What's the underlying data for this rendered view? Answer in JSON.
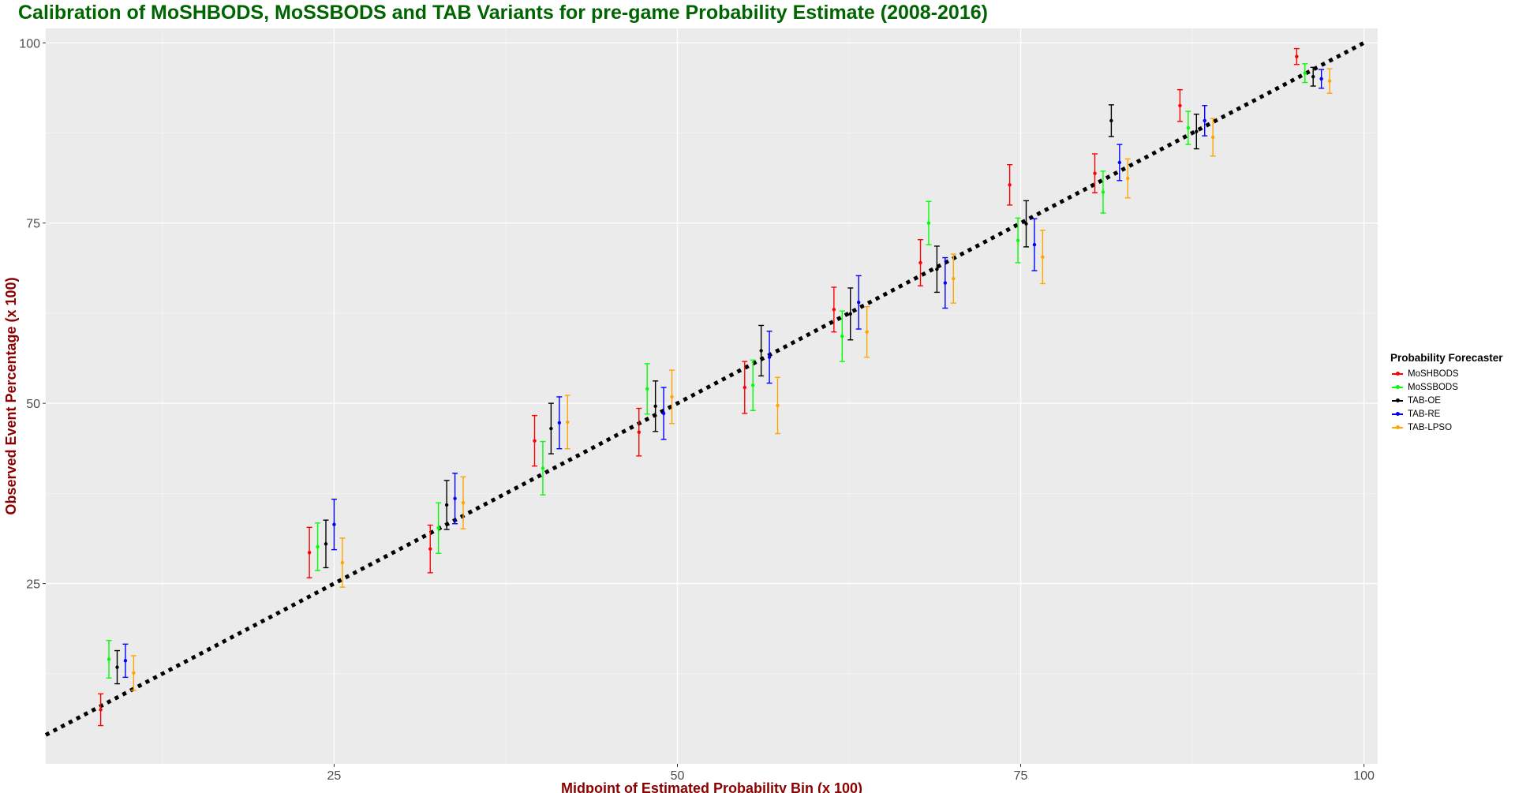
{
  "chart_data": {
    "type": "scatter",
    "title": "Calibration of MoSHBODS, MoSSBODS and TAB Variants for pre-game Probability Estimate (2008-2016)",
    "xlabel": "Midpoint of Estimated Probability Bin (x 100)",
    "ylabel": "Observed Event Percentage (x 100)",
    "xlim": [
      4,
      101
    ],
    "ylim": [
      0,
      102
    ],
    "x_ticks": [
      25,
      50,
      75,
      100
    ],
    "y_ticks": [
      25,
      50,
      75,
      100
    ],
    "grid": true,
    "legend_title": "Probability Forecaster",
    "legend_position": "right",
    "reference_line": {
      "style": "dotted",
      "color": "#000000",
      "from": [
        4,
        4
      ],
      "to": [
        100,
        100
      ]
    },
    "series": [
      {
        "name": "MoSHBODS",
        "color": "#ff0000",
        "points": [
          {
            "x": 8.0,
            "y": 7.5,
            "lo": 5.3,
            "hi": 9.7
          },
          {
            "x": 23.2,
            "y": 29.3,
            "lo": 25.8,
            "hi": 32.8
          },
          {
            "x": 32.0,
            "y": 29.8,
            "lo": 26.5,
            "hi": 33.1
          },
          {
            "x": 39.6,
            "y": 44.8,
            "lo": 41.3,
            "hi": 48.3
          },
          {
            "x": 47.2,
            "y": 46.0,
            "lo": 42.7,
            "hi": 49.3
          },
          {
            "x": 54.9,
            "y": 52.2,
            "lo": 48.6,
            "hi": 55.8
          },
          {
            "x": 61.4,
            "y": 63.0,
            "lo": 59.9,
            "hi": 66.1
          },
          {
            "x": 67.7,
            "y": 69.5,
            "lo": 66.3,
            "hi": 72.7
          },
          {
            "x": 74.2,
            "y": 80.3,
            "lo": 77.5,
            "hi": 83.1
          },
          {
            "x": 80.4,
            "y": 81.9,
            "lo": 79.2,
            "hi": 84.6
          },
          {
            "x": 86.6,
            "y": 91.3,
            "lo": 89.1,
            "hi": 93.5
          },
          {
            "x": 95.1,
            "y": 98.1,
            "lo": 97.0,
            "hi": 99.2
          }
        ]
      },
      {
        "name": "MoSSBODS",
        "color": "#00ff00",
        "points": [
          {
            "x": 8.6,
            "y": 14.5,
            "lo": 11.9,
            "hi": 17.1
          },
          {
            "x": 23.8,
            "y": 30.1,
            "lo": 26.8,
            "hi": 33.4
          },
          {
            "x": 32.6,
            "y": 32.7,
            "lo": 29.2,
            "hi": 36.2
          },
          {
            "x": 40.2,
            "y": 41.0,
            "lo": 37.3,
            "hi": 44.7
          },
          {
            "x": 47.8,
            "y": 52.0,
            "lo": 48.5,
            "hi": 55.5
          },
          {
            "x": 55.5,
            "y": 52.5,
            "lo": 49.0,
            "hi": 56.0
          },
          {
            "x": 62.0,
            "y": 59.3,
            "lo": 55.8,
            "hi": 62.8
          },
          {
            "x": 68.3,
            "y": 75.0,
            "lo": 72.0,
            "hi": 78.0
          },
          {
            "x": 74.8,
            "y": 72.6,
            "lo": 69.5,
            "hi": 75.7
          },
          {
            "x": 81.0,
            "y": 79.3,
            "lo": 76.4,
            "hi": 82.2
          },
          {
            "x": 87.2,
            "y": 88.2,
            "lo": 85.9,
            "hi": 90.5
          },
          {
            "x": 95.7,
            "y": 95.8,
            "lo": 94.5,
            "hi": 97.1
          }
        ]
      },
      {
        "name": "TAB-OE",
        "color": "#000000",
        "points": [
          {
            "x": 9.2,
            "y": 13.4,
            "lo": 11.1,
            "hi": 15.7
          },
          {
            "x": 24.4,
            "y": 30.5,
            "lo": 27.2,
            "hi": 33.8
          },
          {
            "x": 33.2,
            "y": 35.9,
            "lo": 32.5,
            "hi": 39.3
          },
          {
            "x": 40.8,
            "y": 46.5,
            "lo": 43.0,
            "hi": 50.0
          },
          {
            "x": 48.4,
            "y": 49.6,
            "lo": 46.1,
            "hi": 53.1
          },
          {
            "x": 56.1,
            "y": 57.3,
            "lo": 53.8,
            "hi": 60.8
          },
          {
            "x": 62.6,
            "y": 62.4,
            "lo": 58.8,
            "hi": 66.0
          },
          {
            "x": 68.9,
            "y": 68.6,
            "lo": 65.4,
            "hi": 71.8
          },
          {
            "x": 75.4,
            "y": 74.9,
            "lo": 71.7,
            "hi": 78.1
          },
          {
            "x": 81.6,
            "y": 89.2,
            "lo": 87.0,
            "hi": 91.4
          },
          {
            "x": 87.8,
            "y": 87.7,
            "lo": 85.3,
            "hi": 90.1
          },
          {
            "x": 96.3,
            "y": 95.3,
            "lo": 94.0,
            "hi": 96.6
          }
        ]
      },
      {
        "name": "TAB-RE",
        "color": "#0000ff",
        "points": [
          {
            "x": 9.8,
            "y": 14.3,
            "lo": 12.0,
            "hi": 16.6
          },
          {
            "x": 25.0,
            "y": 33.2,
            "lo": 29.7,
            "hi": 36.7
          },
          {
            "x": 33.8,
            "y": 36.8,
            "lo": 33.3,
            "hi": 40.3
          },
          {
            "x": 41.4,
            "y": 47.3,
            "lo": 43.7,
            "hi": 50.9
          },
          {
            "x": 49.0,
            "y": 48.6,
            "lo": 45.0,
            "hi": 52.2
          },
          {
            "x": 56.7,
            "y": 56.4,
            "lo": 52.8,
            "hi": 60.0
          },
          {
            "x": 63.2,
            "y": 64.0,
            "lo": 60.3,
            "hi": 67.7
          },
          {
            "x": 69.5,
            "y": 66.7,
            "lo": 63.2,
            "hi": 70.2
          },
          {
            "x": 76.0,
            "y": 72.0,
            "lo": 68.4,
            "hi": 75.6
          },
          {
            "x": 82.2,
            "y": 83.4,
            "lo": 80.9,
            "hi": 85.9
          },
          {
            "x": 88.4,
            "y": 89.2,
            "lo": 87.1,
            "hi": 91.3
          },
          {
            "x": 96.9,
            "y": 95.0,
            "lo": 93.7,
            "hi": 96.3
          }
        ]
      },
      {
        "name": "TAB-LPSO",
        "color": "#ffa500",
        "points": [
          {
            "x": 10.4,
            "y": 12.6,
            "lo": 10.2,
            "hi": 15.0
          },
          {
            "x": 25.6,
            "y": 27.9,
            "lo": 24.5,
            "hi": 31.3
          },
          {
            "x": 34.4,
            "y": 36.2,
            "lo": 32.6,
            "hi": 39.8
          },
          {
            "x": 42.0,
            "y": 47.4,
            "lo": 43.7,
            "hi": 51.1
          },
          {
            "x": 49.6,
            "y": 50.9,
            "lo": 47.2,
            "hi": 54.6
          },
          {
            "x": 57.3,
            "y": 49.7,
            "lo": 45.8,
            "hi": 53.6
          },
          {
            "x": 63.8,
            "y": 59.9,
            "lo": 56.4,
            "hi": 63.4
          },
          {
            "x": 70.1,
            "y": 67.3,
            "lo": 63.9,
            "hi": 70.7
          },
          {
            "x": 76.6,
            "y": 70.3,
            "lo": 66.6,
            "hi": 74.0
          },
          {
            "x": 82.8,
            "y": 81.2,
            "lo": 78.5,
            "hi": 83.9
          },
          {
            "x": 89.0,
            "y": 86.9,
            "lo": 84.3,
            "hi": 89.5
          },
          {
            "x": 97.5,
            "y": 94.7,
            "lo": 93.0,
            "hi": 96.4
          }
        ]
      }
    ]
  }
}
